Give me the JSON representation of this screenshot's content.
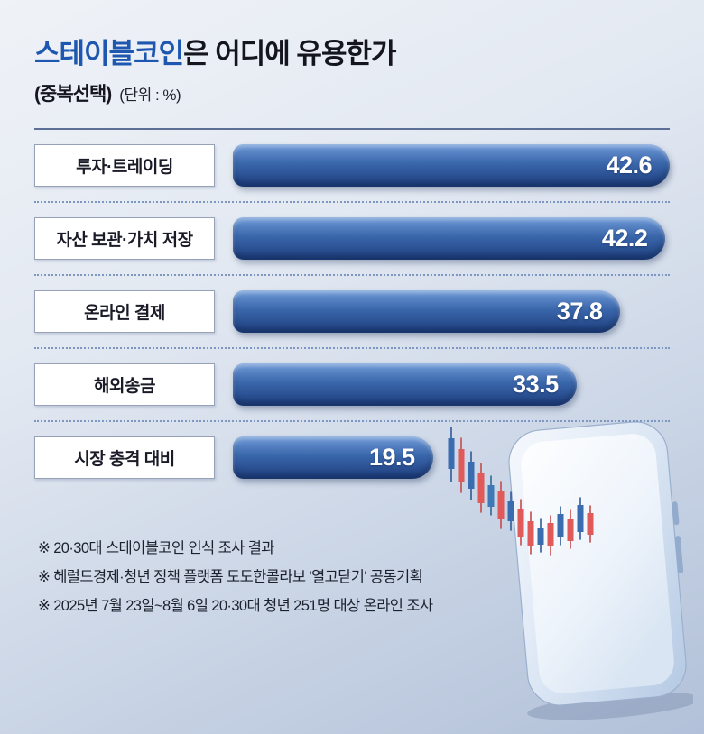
{
  "header": {
    "title_highlight": "스테이블코인",
    "title_rest": "은 어디에 유용한가",
    "subtitle_bold": "(중복선택)",
    "subtitle_unit": "(단위 : %)"
  },
  "chart_data": {
    "type": "bar",
    "orientation": "horizontal",
    "title": "스테이블코인은 어디에 유용한가",
    "note": "중복선택",
    "unit": "%",
    "categories": [
      "투자·트레이딩",
      "자산 보관·가치 저장",
      "온라인 결제",
      "해외송금",
      "시장 충격 대비"
    ],
    "values": [
      42.6,
      42.2,
      37.8,
      33.5,
      19.5
    ],
    "xlim": [
      0,
      45
    ],
    "legend": false,
    "grid": false,
    "value_labels_inside_bars": true
  },
  "footnotes": [
    "※ 20·30대 스테이블코인 인식 조사 결과",
    "※ 헤럴드경제·청년 정책 플랫폼 도도한콜라보 '열고닫기' 공동기획",
    "※ 2025년 7월 23일~8월 6일 20·30대 청년 251명 대상 온라인 조사"
  ],
  "illustration": "smartphone-with-candlestick-chart",
  "colors": {
    "title_accent": "#1d57b0",
    "bar_dark": "#1e3f7e",
    "bar_light": "#6f9bd8",
    "value_text": "#ffffff",
    "candle_up": "#e05a5a",
    "candle_down": "#3a6cb0"
  }
}
